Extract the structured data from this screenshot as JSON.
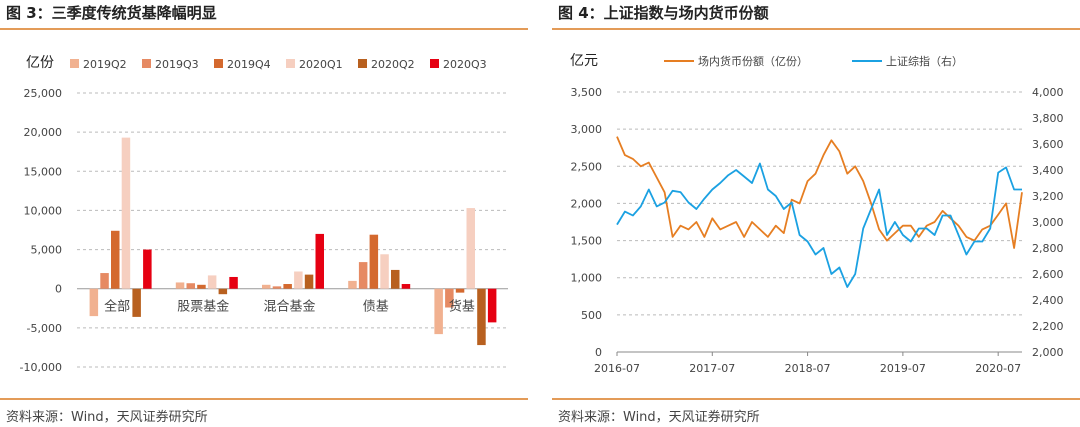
{
  "panels": [
    {
      "title": "图 3：三季度传统货基降幅明显",
      "source": "资料来源：Wind，天风证券研究所"
    },
    {
      "title": "图 4：上证指数与场内货币份额",
      "source": "资料来源：Wind，天风证券研究所"
    }
  ],
  "chart_data": [
    {
      "type": "bar",
      "ylabel": "亿份",
      "ylim": [
        -10000,
        25000
      ],
      "yticks": [
        "25,000",
        "20,000",
        "15,000",
        "10,000",
        "5,000",
        "0",
        "-5,000",
        "-10,000"
      ],
      "categories": [
        "全部",
        "股票基金",
        "混合基金",
        "债基",
        "货基"
      ],
      "series": [
        {
          "name": "2019Q2",
          "color": "#f1b190",
          "values": [
            -3500,
            800,
            500,
            1000,
            -5800
          ]
        },
        {
          "name": "2019Q3",
          "color": "#e68a63",
          "values": [
            2000,
            700,
            300,
            3400,
            -2400
          ]
        },
        {
          "name": "2019Q4",
          "color": "#d4692e",
          "values": [
            7400,
            500,
            600,
            6900,
            -500
          ]
        },
        {
          "name": "2020Q1",
          "color": "#f6cfc0",
          "values": [
            19300,
            1700,
            2200,
            4400,
            10300
          ]
        },
        {
          "name": "2020Q2",
          "color": "#b8601f",
          "values": [
            -3600,
            -700,
            1800,
            2400,
            -7200
          ]
        },
        {
          "name": "2020Q3",
          "color": "#e60012",
          "values": [
            5000,
            1500,
            7000,
            600,
            -4300
          ]
        }
      ],
      "grid": true,
      "legend": "top"
    },
    {
      "type": "line",
      "ylabel": "亿元",
      "ylim": [
        0,
        3500
      ],
      "y2lim": [
        2000,
        4000
      ],
      "yticks": [
        "3,500",
        "3,000",
        "2,500",
        "2,000",
        "1,500",
        "1,000",
        "500",
        "0"
      ],
      "y2ticks": [
        "4,000",
        "3,800",
        "3,600",
        "3,400",
        "3,200",
        "3,000",
        "2,800",
        "2,600",
        "2,400",
        "2,200",
        "2,000"
      ],
      "xticks": [
        "2016-07",
        "2017-07",
        "2018-07",
        "2019-07",
        "2020-07"
      ],
      "legend": "top",
      "grid": true,
      "series": [
        {
          "name": "场内货币份额（亿份）",
          "axis": "left",
          "color": "#e67e22",
          "x": [
            "2016-07",
            "2016-08",
            "2016-09",
            "2016-10",
            "2016-11",
            "2016-12",
            "2017-01",
            "2017-02",
            "2017-03",
            "2017-04",
            "2017-05",
            "2017-06",
            "2017-07",
            "2017-08",
            "2017-09",
            "2017-10",
            "2017-11",
            "2017-12",
            "2018-01",
            "2018-02",
            "2018-03",
            "2018-04",
            "2018-05",
            "2018-06",
            "2018-07",
            "2018-08",
            "2018-09",
            "2018-10",
            "2018-11",
            "2018-12",
            "2019-01",
            "2019-02",
            "2019-03",
            "2019-04",
            "2019-05",
            "2019-06",
            "2019-07",
            "2019-08",
            "2019-09",
            "2019-10",
            "2019-11",
            "2019-12",
            "2020-01",
            "2020-02",
            "2020-03",
            "2020-04",
            "2020-05",
            "2020-06",
            "2020-07",
            "2020-08",
            "2020-09",
            "2020-10"
          ],
          "values": [
            2900,
            2650,
            2600,
            2500,
            2550,
            2350,
            2150,
            1550,
            1700,
            1650,
            1750,
            1550,
            1800,
            1650,
            1700,
            1750,
            1550,
            1750,
            1650,
            1550,
            1700,
            1600,
            2050,
            2000,
            2300,
            2400,
            2650,
            2850,
            2700,
            2400,
            2500,
            2300,
            2000,
            1650,
            1500,
            1600,
            1700,
            1700,
            1550,
            1700,
            1750,
            1900,
            1800,
            1700,
            1550,
            1500,
            1650,
            1700,
            1850,
            2000,
            1400,
            2150
          ]
        },
        {
          "name": "上证综指（右）",
          "axis": "right",
          "color": "#1ba1e2",
          "x": [
            "2016-07",
            "2016-08",
            "2016-09",
            "2016-10",
            "2016-11",
            "2016-12",
            "2017-01",
            "2017-02",
            "2017-03",
            "2017-04",
            "2017-05",
            "2017-06",
            "2017-07",
            "2017-08",
            "2017-09",
            "2017-10",
            "2017-11",
            "2017-12",
            "2018-01",
            "2018-02",
            "2018-03",
            "2018-04",
            "2018-05",
            "2018-06",
            "2018-07",
            "2018-08",
            "2018-09",
            "2018-10",
            "2018-11",
            "2018-12",
            "2019-01",
            "2019-02",
            "2019-03",
            "2019-04",
            "2019-05",
            "2019-06",
            "2019-07",
            "2019-08",
            "2019-09",
            "2019-10",
            "2019-11",
            "2019-12",
            "2020-01",
            "2020-02",
            "2020-03",
            "2020-04",
            "2020-05",
            "2020-06",
            "2020-07",
            "2020-08",
            "2020-09",
            "2020-10"
          ],
          "values": [
            2980,
            3080,
            3050,
            3120,
            3250,
            3120,
            3150,
            3240,
            3230,
            3150,
            3100,
            3180,
            3250,
            3300,
            3360,
            3400,
            3350,
            3300,
            3450,
            3250,
            3200,
            3100,
            3150,
            2900,
            2850,
            2750,
            2800,
            2600,
            2650,
            2500,
            2600,
            2950,
            3100,
            3250,
            2900,
            3000,
            2900,
            2850,
            2950,
            2950,
            2900,
            3050,
            3050,
            2900,
            2750,
            2850,
            2850,
            2950,
            3380,
            3420,
            3250,
            3250
          ]
        }
      ]
    }
  ]
}
